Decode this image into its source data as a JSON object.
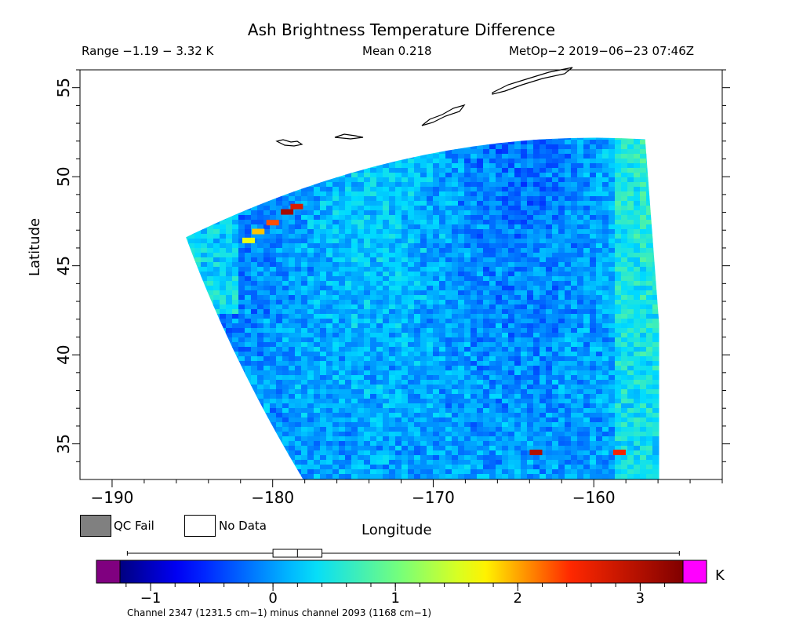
{
  "chart_data": {
    "type": "heatmap",
    "title": "Ash Brightness Temperature Difference",
    "range_text": "Range −1.19 − 3.32 K",
    "mean_text": "Mean 0.218",
    "satellite_time_text": "MetOp−2 2019−06−23 07:46Z",
    "xlabel": "Longitude",
    "ylabel": "Latitude",
    "xlim": [
      -192,
      -152
    ],
    "ylim": [
      33,
      56
    ],
    "x_ticks": [
      -190,
      -180,
      -170,
      -160
    ],
    "x_tick_labels": [
      "−190",
      "−180",
      "−170",
      "−160"
    ],
    "y_ticks": [
      35,
      40,
      45,
      50,
      55
    ],
    "y_tick_labels": [
      "35",
      "40",
      "45",
      "50",
      "55"
    ],
    "colorbar": {
      "min": -1.25,
      "max": 3.35,
      "ticks": [
        -1,
        0,
        1,
        2,
        3
      ],
      "tick_labels": [
        "−1",
        "0",
        "1",
        "2",
        "3"
      ],
      "unit": "K",
      "under_color": "#800080",
      "over_color": "#ff00ff",
      "boxplot": {
        "min": -1.19,
        "q1": 0.0,
        "median": 0.2,
        "q3": 0.4,
        "max": 3.32
      }
    },
    "legend": [
      {
        "label": "QC Fail",
        "color": "#808080"
      },
      {
        "label": "No Data",
        "color": "#ffffff"
      }
    ],
    "footnote": "Channel 2347 (1231.5 cm−1) minus channel 2093 (1168 cm−1)",
    "swath_corners": {
      "top_left": [
        -185.4,
        46.6
      ],
      "top_right": [
        -156.8,
        52.1
      ],
      "bottom_right": [
        -155.2,
        33.0
      ],
      "bottom_left": [
        -178.1,
        33.0
      ]
    },
    "hotspots": [
      {
        "lon": -179.1,
        "lat": 48.0,
        "value": 3.1
      },
      {
        "lon": -178.5,
        "lat": 48.3,
        "value": 2.7
      },
      {
        "lon": -180.0,
        "lat": 47.4,
        "value": 2.3
      },
      {
        "lon": -180.9,
        "lat": 46.9,
        "value": 1.9
      },
      {
        "lon": -181.5,
        "lat": 46.4,
        "value": 1.6
      },
      {
        "lon": -163.6,
        "lat": 34.5,
        "value": 3.0
      },
      {
        "lon": -158.4,
        "lat": 34.5,
        "value": 2.5
      }
    ],
    "grid": false
  }
}
